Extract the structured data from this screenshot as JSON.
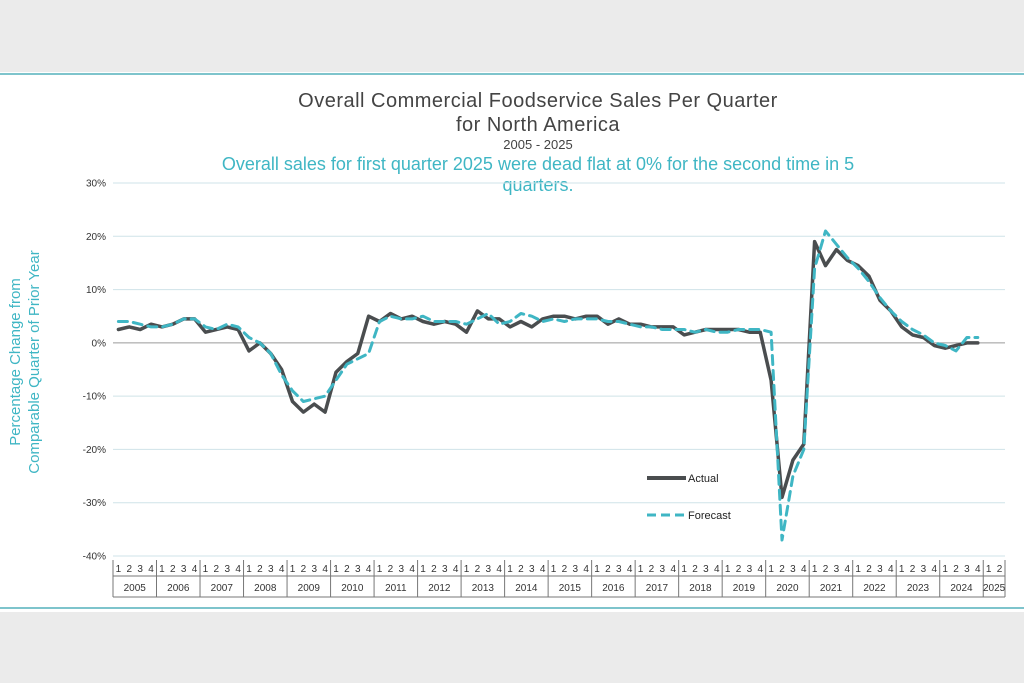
{
  "colors": {
    "actual": "#4a4d4f",
    "forecast": "#3fb6c4",
    "accent": "#3fb6c4"
  },
  "chart_data": {
    "type": "line",
    "title_line1": "Overall Commercial Foodservice Sales Per Quarter",
    "title_line2": "for North America",
    "subtitle": "2005 - 2025",
    "highlight_line1": "Overall sales for first quarter 2025 were dead flat at 0% for the second time in 5",
    "highlight_line2": "quarters.",
    "ylabel_line1": "Percentage Change from",
    "ylabel_line2": "Comparable Quarter of Prior Year",
    "ylim": [
      -40,
      30
    ],
    "yticks": [
      30,
      20,
      10,
      0,
      -10,
      -20,
      -30,
      -40
    ],
    "ytick_labels": [
      "30%",
      "20%",
      "10%",
      "0%",
      "-10%",
      "-20%",
      "-30%",
      "-40%"
    ],
    "years": [
      "2005",
      "2006",
      "2007",
      "2008",
      "2009",
      "2010",
      "2011",
      "2012",
      "2013",
      "2014",
      "2015",
      "2016",
      "2017",
      "2018",
      "2019",
      "2020",
      "2021",
      "2022",
      "2023",
      "2024",
      "2025"
    ],
    "quarter_labels": [
      "1",
      "2",
      "3",
      "4"
    ],
    "last_year_quarters": 2,
    "legend": [
      "Actual",
      "Forecast"
    ],
    "series": [
      {
        "name": "Actual",
        "style": "solid",
        "values": [
          2.5,
          3,
          2.5,
          3.5,
          3,
          3.5,
          4.5,
          4.5,
          2,
          2.5,
          3,
          2.5,
          -1.5,
          0,
          -2,
          -5,
          -11,
          -13,
          -11.5,
          -13,
          -5.5,
          -3.5,
          -2,
          5,
          4,
          5.5,
          4.5,
          5,
          4,
          3.5,
          4,
          3.5,
          2,
          6,
          4.5,
          4.5,
          3,
          4,
          3,
          4.5,
          5,
          5,
          4.5,
          5,
          5,
          3.5,
          4.5,
          3.5,
          3.5,
          3,
          3,
          3,
          1.5,
          2,
          2.5,
          2.5,
          2.5,
          2.5,
          2,
          2,
          -7,
          -29,
          -22,
          -19,
          19,
          14.5,
          17.5,
          15.5,
          14.5,
          12.5,
          8,
          6,
          3,
          1.5,
          1,
          -0.5,
          -1,
          -0.5,
          0,
          0
        ]
      },
      {
        "name": "Forecast",
        "style": "dashed",
        "values": [
          4,
          4,
          3.5,
          3,
          3,
          3.5,
          4.5,
          4.5,
          3,
          2.5,
          3.5,
          3,
          1,
          0,
          -2,
          -6,
          -9,
          -11,
          -10.5,
          -10,
          -7,
          -4,
          -3,
          -2,
          4,
          5,
          4.5,
          4.5,
          5,
          4,
          4,
          4,
          3.5,
          4.5,
          5.5,
          3.5,
          4,
          5.5,
          5,
          4,
          4.5,
          4,
          4.5,
          4.5,
          4.5,
          4,
          4,
          3.5,
          3,
          3,
          2.5,
          2.5,
          2.5,
          2,
          2.5,
          2,
          2,
          2.5,
          2.5,
          2.5,
          2,
          -37,
          -25,
          -20,
          14,
          21,
          18.5,
          16,
          14,
          11.5,
          8.5,
          6,
          4,
          2.5,
          1.5,
          0,
          -0.5,
          -1.5,
          1,
          1
        ]
      }
    ]
  }
}
